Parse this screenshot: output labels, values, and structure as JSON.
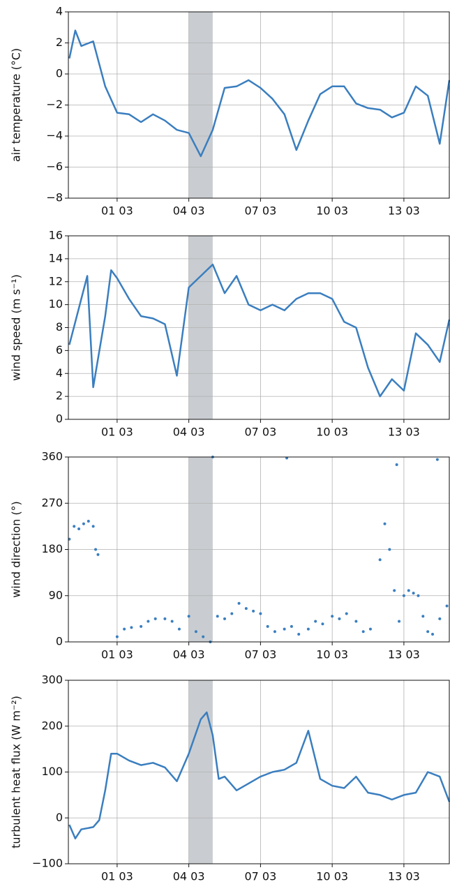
{
  "chart_data": [
    {
      "type": "line",
      "y_label": "air temperature (°C)",
      "color": "#3a7ebf",
      "grid": true,
      "span": [
        4,
        5
      ],
      "xlim": [
        -1.04,
        14.9
      ],
      "xticks": [
        {
          "value": 1,
          "label": "01 03"
        },
        {
          "value": 4,
          "label": "04 03"
        },
        {
          "value": 7,
          "label": "07 03"
        },
        {
          "value": 10,
          "label": "10 03"
        },
        {
          "value": 13,
          "label": "13 03"
        }
      ],
      "ylim": [
        -8,
        4
      ],
      "yticks": [
        {
          "value": -8,
          "label": "−8"
        },
        {
          "value": -6,
          "label": "−6"
        },
        {
          "value": -4,
          "label": "−4"
        },
        {
          "value": -2,
          "label": "−2"
        },
        0,
        2,
        4
      ],
      "x": [
        -1,
        -0.75,
        -0.5,
        0,
        0.5,
        1,
        1.5,
        2,
        2.5,
        3,
        3.5,
        4,
        4.5,
        5,
        5.5,
        6,
        6.5,
        7,
        7.5,
        8,
        8.5,
        9,
        9.5,
        10,
        10.5,
        11,
        11.5,
        12,
        12.5,
        13,
        13.5,
        14,
        14.5,
        14.9
      ],
      "values": [
        1.0,
        2.8,
        1.8,
        2.1,
        -0.8,
        -2.5,
        -2.6,
        -3.1,
        -2.6,
        -3.0,
        -3.6,
        -3.8,
        -5.3,
        -3.6,
        -0.9,
        -0.8,
        -0.4,
        -0.9,
        -1.6,
        -2.6,
        -4.9,
        -3.0,
        -1.3,
        -0.8,
        -0.8,
        -1.9,
        -2.2,
        -2.3,
        -2.8,
        -2.5,
        -0.8,
        -1.4,
        -4.5,
        -0.4
      ]
    },
    {
      "type": "line",
      "y_label": "wind speed (m s⁻¹)",
      "color": "#3a7ebf",
      "grid": true,
      "span": [
        4,
        5
      ],
      "xlim": [
        -1.04,
        14.9
      ],
      "xticks": [
        {
          "value": 1,
          "label": "01 03"
        },
        {
          "value": 4,
          "label": "04 03"
        },
        {
          "value": 7,
          "label": "07 03"
        },
        {
          "value": 10,
          "label": "10 03"
        },
        {
          "value": 13,
          "label": "13 03"
        }
      ],
      "ylim": [
        0,
        16
      ],
      "yticks": [
        0,
        2,
        4,
        6,
        8,
        10,
        12,
        14,
        16
      ],
      "x": [
        -1,
        -0.5,
        -0.25,
        0,
        0.5,
        0.75,
        1,
        1.5,
        2,
        2.5,
        3,
        3.5,
        4,
        4.5,
        5,
        5.5,
        6,
        6.5,
        7,
        7.5,
        8,
        8.5,
        9,
        9.5,
        10,
        10.5,
        11,
        11.5,
        12,
        12.5,
        13,
        13.5,
        14,
        14.5,
        14.9
      ],
      "values": [
        6.5,
        10.5,
        12.5,
        2.8,
        9,
        13,
        12.3,
        10.5,
        9,
        8.8,
        8.3,
        3.8,
        11.5,
        12.5,
        13.5,
        11,
        12.5,
        10,
        9.5,
        10,
        9.5,
        10.5,
        11,
        11,
        10.5,
        8.5,
        8,
        4.5,
        2,
        3.5,
        2.5,
        7.5,
        6.5,
        5,
        8.7
      ]
    },
    {
      "type": "scatter",
      "y_label": "wind direction (°)",
      "color": "#3a7ebf",
      "grid": true,
      "span": [
        4,
        5
      ],
      "xlim": [
        -1.04,
        14.9
      ],
      "xticks": [
        {
          "value": 1,
          "label": "01 03"
        },
        {
          "value": 4,
          "label": "04 03"
        },
        {
          "value": 7,
          "label": "07 03"
        },
        {
          "value": 10,
          "label": "10 03"
        },
        {
          "value": 13,
          "label": "13 03"
        }
      ],
      "ylim": [
        0,
        360
      ],
      "yticks": [
        0,
        90,
        180,
        270,
        360
      ],
      "x": [
        -1,
        -0.8,
        -0.6,
        -0.4,
        -0.2,
        0,
        0.1,
        0.2,
        1,
        1.3,
        1.6,
        2,
        2.3,
        2.6,
        3,
        3.3,
        3.6,
        4,
        4.3,
        4.6,
        4.9,
        5.2,
        5.5,
        5.8,
        6.1,
        6.4,
        6.7,
        7,
        7.3,
        7.6,
        8,
        8.3,
        8.6,
        9,
        9.3,
        9.6,
        10,
        10.3,
        10.6,
        11,
        11.3,
        11.6,
        12,
        12.2,
        12.4,
        12.6,
        12.8,
        13,
        13.2,
        13.4,
        13.6,
        13.8,
        14,
        14.2,
        14.5,
        14.8,
        8.1,
        12.7,
        14.4,
        5.0
      ],
      "values": [
        200,
        225,
        220,
        230,
        235,
        225,
        180,
        170,
        10,
        25,
        28,
        30,
        40,
        45,
        45,
        40,
        25,
        50,
        20,
        10,
        0,
        50,
        45,
        55,
        75,
        65,
        60,
        55,
        30,
        20,
        25,
        30,
        15,
        25,
        40,
        35,
        50,
        45,
        55,
        40,
        20,
        25,
        160,
        230,
        180,
        100,
        40,
        90,
        100,
        95,
        90,
        50,
        20,
        15,
        45,
        70,
        358,
        345,
        355,
        360
      ]
    },
    {
      "type": "line",
      "y_label": "turbulent heat flux (W m⁻²)",
      "color": "#3a7ebf",
      "grid": true,
      "span": [
        4,
        5
      ],
      "xlim": [
        -1.04,
        14.9
      ],
      "xticks": [
        {
          "value": 1,
          "label": "01 03"
        },
        {
          "value": 4,
          "label": "04 03"
        },
        {
          "value": 7,
          "label": "07 03"
        },
        {
          "value": 10,
          "label": "10 03"
        },
        {
          "value": 13,
          "label": "13 03"
        }
      ],
      "ylim": [
        -100,
        300
      ],
      "yticks": [
        {
          "value": -100,
          "label": "−100"
        },
        0,
        100,
        200,
        300
      ],
      "x": [
        -1,
        -0.75,
        -0.5,
        0,
        0.25,
        0.5,
        0.75,
        1,
        1.5,
        2,
        2.5,
        3,
        3.5,
        4,
        4.5,
        4.75,
        5,
        5.25,
        5.5,
        6,
        6.5,
        7,
        7.5,
        8,
        8.5,
        9,
        9.5,
        10,
        10.5,
        11,
        11.5,
        12,
        12.5,
        13,
        13.5,
        14,
        14.5,
        14.9
      ],
      "values": [
        -15,
        -45,
        -25,
        -20,
        -5,
        60,
        140,
        140,
        125,
        115,
        120,
        110,
        80,
        140,
        215,
        230,
        180,
        85,
        90,
        60,
        75,
        90,
        100,
        105,
        120,
        190,
        85,
        70,
        65,
        90,
        55,
        50,
        40,
        50,
        55,
        100,
        90,
        35
      ]
    }
  ]
}
